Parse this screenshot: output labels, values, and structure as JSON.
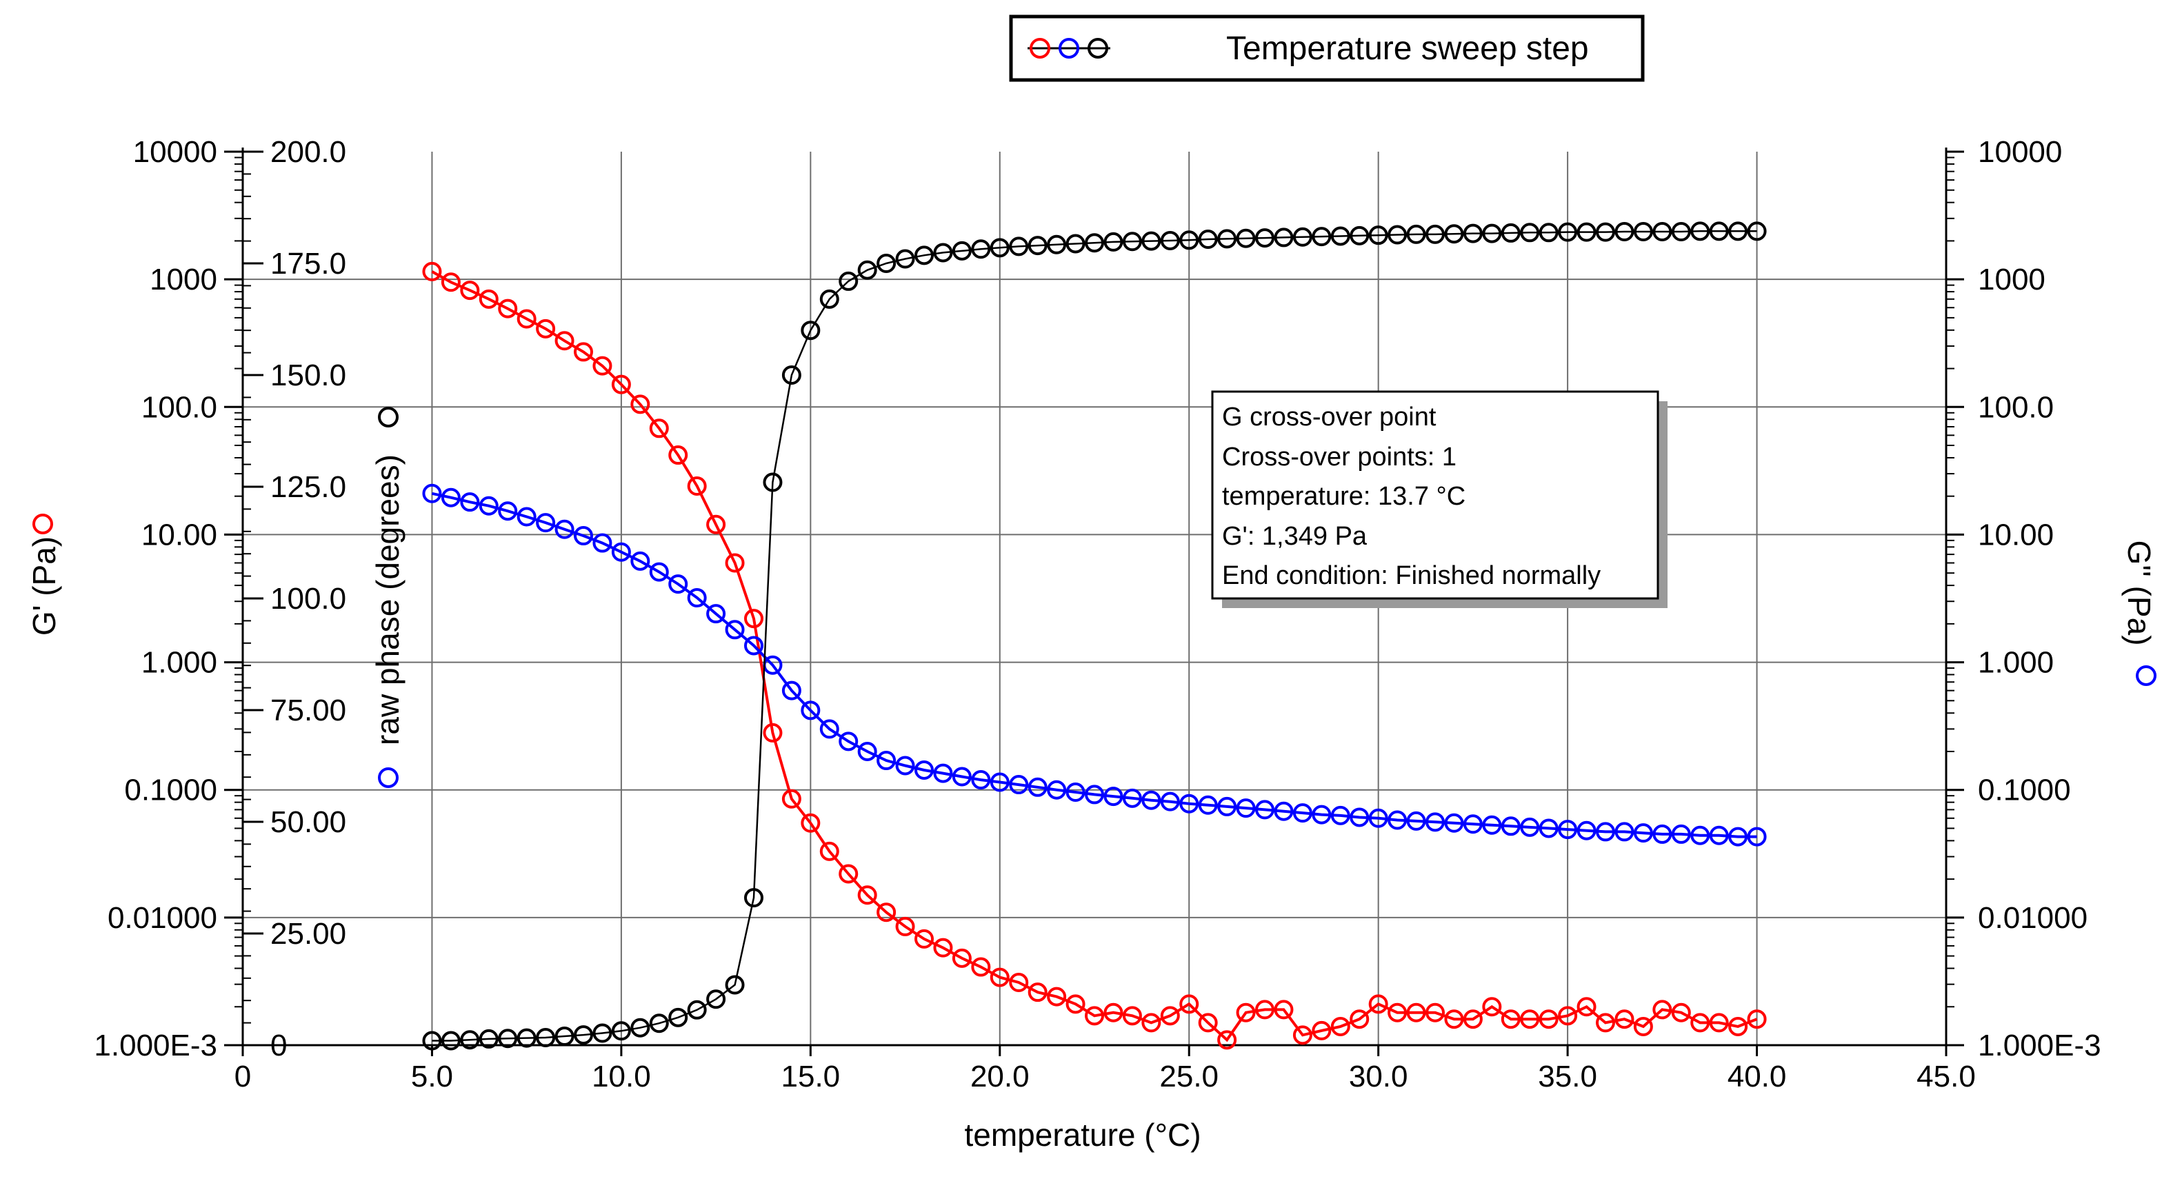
{
  "chart_data": {
    "type": "scatter",
    "title": "",
    "legend": {
      "label": "Temperature sweep step",
      "placement": "top"
    },
    "xlabel": "temperature (°C)",
    "xlim": [
      0,
      45
    ],
    "x_ticks": [
      "0",
      "5.0",
      "10.0",
      "15.0",
      "20.0",
      "25.0",
      "30.0",
      "35.0",
      "40.0",
      "45.0"
    ],
    "y_left_label": "G' (Pa)",
    "y_left_scale": "log",
    "y_left_ticks": [
      "1.000E-3",
      "0.01000",
      "0.1000",
      "1.000",
      "10.00",
      "100.0",
      "1000",
      "10000"
    ],
    "y_phase_label": "raw phase (degrees)",
    "y_phase_ticks": [
      "0",
      "25.00",
      "50.00",
      "75.00",
      "100.0",
      "125.0",
      "150.0",
      "175.0",
      "200.0"
    ],
    "y_right_label": "G'' (Pa)",
    "y_right_ticks": [
      "1.000E-3",
      "0.01000",
      "0.1000",
      "1.000",
      "10.00",
      "100.0",
      "1000",
      "10000"
    ],
    "grid": true,
    "annotation": {
      "lines": [
        "G cross-over point",
        "Cross-over points: 1",
        "temperature: 13.7 °C",
        "G': 1,349 Pa",
        "End condition: Finished normally"
      ]
    },
    "series": [
      {
        "name": "G'",
        "axis": "left-log",
        "color": "#ff0000",
        "points": [
          [
            5.0,
            1150
          ],
          [
            5.5,
            950
          ],
          [
            6.0,
            820
          ],
          [
            6.5,
            700
          ],
          [
            7.0,
            590
          ],
          [
            7.5,
            490
          ],
          [
            8.0,
            410
          ],
          [
            8.5,
            330
          ],
          [
            9.0,
            270
          ],
          [
            9.5,
            210
          ],
          [
            10.0,
            150
          ],
          [
            10.5,
            105
          ],
          [
            11.0,
            68
          ],
          [
            11.5,
            42
          ],
          [
            12.0,
            24
          ],
          [
            12.5,
            12
          ],
          [
            13.0,
            6.0
          ],
          [
            13.5,
            2.2
          ],
          [
            14.0,
            0.28
          ],
          [
            14.5,
            0.085
          ],
          [
            15.0,
            0.055
          ],
          [
            15.5,
            0.033
          ],
          [
            16.0,
            0.022
          ],
          [
            16.5,
            0.015
          ],
          [
            17.0,
            0.011
          ],
          [
            17.5,
            0.0085
          ],
          [
            18.0,
            0.0068
          ],
          [
            18.5,
            0.0058
          ],
          [
            19.0,
            0.0048
          ],
          [
            19.5,
            0.0041
          ],
          [
            20.0,
            0.0034
          ],
          [
            20.5,
            0.0031
          ],
          [
            21.0,
            0.0026
          ],
          [
            21.5,
            0.0024
          ],
          [
            22.0,
            0.0021
          ],
          [
            22.5,
            0.0017
          ],
          [
            23.0,
            0.0018
          ],
          [
            23.5,
            0.0017
          ],
          [
            24.0,
            0.0015
          ],
          [
            24.5,
            0.0017
          ],
          [
            25.0,
            0.0021
          ],
          [
            25.5,
            0.0015
          ],
          [
            26.0,
            0.0011
          ],
          [
            26.5,
            0.0018
          ],
          [
            27.0,
            0.0019
          ],
          [
            27.5,
            0.0019
          ],
          [
            28.0,
            0.0012
          ],
          [
            28.5,
            0.0013
          ],
          [
            29.0,
            0.0014
          ],
          [
            29.5,
            0.0016
          ],
          [
            30.0,
            0.0021
          ],
          [
            30.5,
            0.0018
          ],
          [
            31.0,
            0.0018
          ],
          [
            31.5,
            0.0018
          ],
          [
            32.0,
            0.0016
          ],
          [
            32.5,
            0.0016
          ],
          [
            33.0,
            0.002
          ],
          [
            33.5,
            0.0016
          ],
          [
            34.0,
            0.0016
          ],
          [
            34.5,
            0.0016
          ],
          [
            35.0,
            0.0017
          ],
          [
            35.5,
            0.002
          ],
          [
            36.0,
            0.0015
          ],
          [
            36.5,
            0.0016
          ],
          [
            37.0,
            0.0014
          ],
          [
            37.5,
            0.0019
          ],
          [
            38.0,
            0.0018
          ],
          [
            38.5,
            0.0015
          ],
          [
            39.0,
            0.0015
          ],
          [
            39.5,
            0.0014
          ],
          [
            40.0,
            0.0016
          ]
        ]
      },
      {
        "name": "G''",
        "axis": "left-log",
        "color": "#0000ff",
        "points": [
          [
            5.0,
            21
          ],
          [
            5.5,
            19.5
          ],
          [
            6.0,
            18
          ],
          [
            6.5,
            16.8
          ],
          [
            7.0,
            15.3
          ],
          [
            7.5,
            13.8
          ],
          [
            8.0,
            12.4
          ],
          [
            8.5,
            11
          ],
          [
            9.0,
            9.8
          ],
          [
            9.5,
            8.6
          ],
          [
            10.0,
            7.3
          ],
          [
            10.5,
            6.2
          ],
          [
            11.0,
            5.1
          ],
          [
            11.5,
            4.1
          ],
          [
            12.0,
            3.2
          ],
          [
            12.5,
            2.4
          ],
          [
            13.0,
            1.8
          ],
          [
            13.5,
            1.35
          ],
          [
            14.0,
            0.95
          ],
          [
            14.5,
            0.6
          ],
          [
            15.0,
            0.42
          ],
          [
            15.5,
            0.3
          ],
          [
            16.0,
            0.24
          ],
          [
            16.5,
            0.2
          ],
          [
            17.0,
            0.17
          ],
          [
            17.5,
            0.155
          ],
          [
            18.0,
            0.143
          ],
          [
            18.5,
            0.135
          ],
          [
            19.0,
            0.127
          ],
          [
            19.5,
            0.12
          ],
          [
            20.0,
            0.115
          ],
          [
            20.5,
            0.11
          ],
          [
            21.0,
            0.105
          ],
          [
            21.5,
            0.1
          ],
          [
            22.0,
            0.096
          ],
          [
            22.5,
            0.092
          ],
          [
            23.0,
            0.089
          ],
          [
            23.5,
            0.086
          ],
          [
            24.0,
            0.083
          ],
          [
            24.5,
            0.081
          ],
          [
            25.0,
            0.078
          ],
          [
            25.5,
            0.076
          ],
          [
            26.0,
            0.074
          ],
          [
            26.5,
            0.072
          ],
          [
            27.0,
            0.07
          ],
          [
            27.5,
            0.068
          ],
          [
            28.0,
            0.066
          ],
          [
            28.5,
            0.064
          ],
          [
            29.0,
            0.063
          ],
          [
            29.5,
            0.061
          ],
          [
            30.0,
            0.06
          ],
          [
            30.5,
            0.058
          ],
          [
            31.0,
            0.057
          ],
          [
            31.5,
            0.056
          ],
          [
            32.0,
            0.055
          ],
          [
            32.5,
            0.054
          ],
          [
            33.0,
            0.053
          ],
          [
            33.5,
            0.052
          ],
          [
            34.0,
            0.051
          ],
          [
            34.5,
            0.05
          ],
          [
            35.0,
            0.049
          ],
          [
            35.5,
            0.048
          ],
          [
            36.0,
            0.047
          ],
          [
            36.5,
            0.047
          ],
          [
            37.0,
            0.046
          ],
          [
            37.5,
            0.045
          ],
          [
            38.0,
            0.045
          ],
          [
            38.5,
            0.044
          ],
          [
            39.0,
            0.044
          ],
          [
            39.5,
            0.043
          ],
          [
            40.0,
            0.043
          ]
        ]
      },
      {
        "name": "raw phase",
        "axis": "phase",
        "color": "#000000",
        "points": [
          [
            5.0,
            1
          ],
          [
            5.5,
            1
          ],
          [
            6.0,
            1.2
          ],
          [
            6.5,
            1.4
          ],
          [
            7.0,
            1.5
          ],
          [
            7.5,
            1.6
          ],
          [
            8.0,
            1.7
          ],
          [
            8.5,
            2
          ],
          [
            9.0,
            2.3
          ],
          [
            9.5,
            2.7
          ],
          [
            10.0,
            3.2
          ],
          [
            10.5,
            3.9
          ],
          [
            11.0,
            4.9
          ],
          [
            11.5,
            6.2
          ],
          [
            12.0,
            7.9
          ],
          [
            12.5,
            10.3
          ],
          [
            13.0,
            13.5
          ],
          [
            13.5,
            33
          ],
          [
            14.0,
            126
          ],
          [
            14.5,
            150
          ],
          [
            15.0,
            160
          ],
          [
            15.5,
            167
          ],
          [
            16.0,
            171
          ],
          [
            16.5,
            173.5
          ],
          [
            17.0,
            175
          ],
          [
            17.5,
            176
          ],
          [
            18.0,
            176.8
          ],
          [
            18.5,
            177.4
          ],
          [
            19.0,
            177.8
          ],
          [
            19.5,
            178.2
          ],
          [
            20.0,
            178.5
          ],
          [
            20.5,
            178.8
          ],
          [
            21.0,
            179
          ],
          [
            21.5,
            179.2
          ],
          [
            22.0,
            179.4
          ],
          [
            22.5,
            179.6
          ],
          [
            23.0,
            179.8
          ],
          [
            23.5,
            179.9
          ],
          [
            24.0,
            180
          ],
          [
            24.5,
            180.1
          ],
          [
            25.0,
            180.2
          ],
          [
            25.5,
            180.4
          ],
          [
            26.0,
            180.5
          ],
          [
            26.5,
            180.6
          ],
          [
            27.0,
            180.7
          ],
          [
            27.5,
            180.8
          ],
          [
            28.0,
            180.9
          ],
          [
            28.5,
            181
          ],
          [
            29.0,
            181.1
          ],
          [
            29.5,
            181.2
          ],
          [
            30.0,
            181.3
          ],
          [
            30.5,
            181.4
          ],
          [
            31.0,
            181.5
          ],
          [
            31.5,
            181.5
          ],
          [
            32.0,
            181.6
          ],
          [
            32.5,
            181.7
          ],
          [
            33.0,
            181.7
          ],
          [
            33.5,
            181.8
          ],
          [
            34.0,
            181.9
          ],
          [
            34.5,
            181.9
          ],
          [
            35.0,
            182
          ],
          [
            35.5,
            182
          ],
          [
            36.0,
            182
          ],
          [
            36.5,
            182.1
          ],
          [
            37.0,
            182.1
          ],
          [
            37.5,
            182.1
          ],
          [
            38.0,
            182.1
          ],
          [
            38.5,
            182.2
          ],
          [
            39.0,
            182.2
          ],
          [
            39.5,
            182.2
          ],
          [
            40.0,
            182.2
          ]
        ]
      }
    ]
  }
}
